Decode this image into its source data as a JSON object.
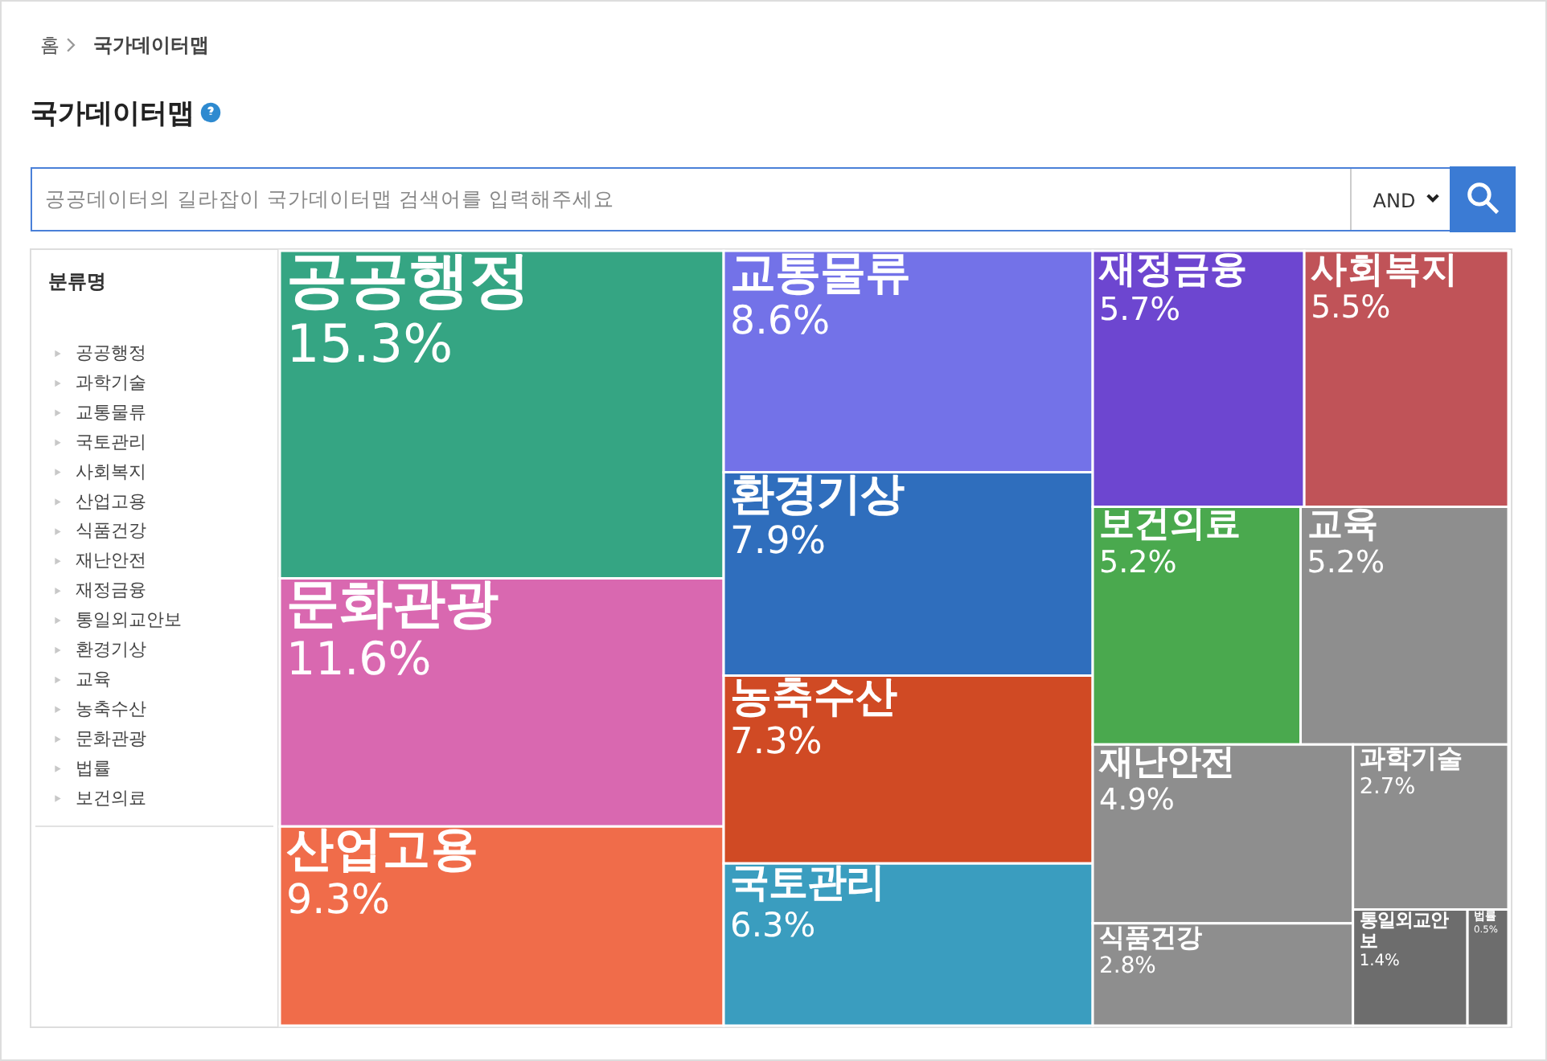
{
  "chart_data": {
    "type": "other",
    "title": "국가데이터맵",
    "categories": [
      "공공행정",
      "문화관광",
      "산업고용",
      "교통물류",
      "환경기상",
      "농축수산",
      "국토관리",
      "재정금융",
      "사회복지",
      "보건의료",
      "교육",
      "재난안전",
      "식품건강",
      "과학기술",
      "통일외교안보",
      "법률"
    ],
    "values": [
      15.3,
      11.6,
      9.3,
      8.6,
      7.9,
      7.3,
      6.3,
      5.7,
      5.5,
      5.2,
      5.2,
      4.9,
      2.8,
      2.7,
      1.4,
      0.5
    ],
    "value_labels": [
      "15.3%",
      "11.6%",
      "9.3%",
      "8.6%",
      "7.9%",
      "7.3%",
      "6.3%",
      "5.7%",
      "5.5%",
      "5.2%",
      "5.2%",
      "4.9%",
      "2.8%",
      "2.7%",
      "1.4%",
      "0.5%"
    ],
    "colors": [
      "#35a583",
      "#d968b0",
      "#f06c4a",
      "#7372e8",
      "#2f6ebd",
      "#d04a24",
      "#3a9dbf",
      "#6d46d0",
      "#c05358",
      "#4aa94e",
      "#8e8e8e",
      "#8e8e8e",
      "#8e8e8e",
      "#8e8e8e",
      "#6d6d6d",
      "#6d6d6d"
    ],
    "annotations": [
      "홈",
      "국가데이터맵",
      "공공데이터의 길라잡이 국가데이터맵 검색어를 입력해주세요",
      "AND",
      "분류명",
      "공공행정",
      "과학기술",
      "교통물류",
      "국토관리",
      "사회복지",
      "산업고용",
      "식품건강",
      "재난안전",
      "재정금융",
      "통일외교안보",
      "환경기상",
      "교육",
      "농축수산",
      "문화관광",
      "법률",
      "보건의료"
    ]
  }
}
